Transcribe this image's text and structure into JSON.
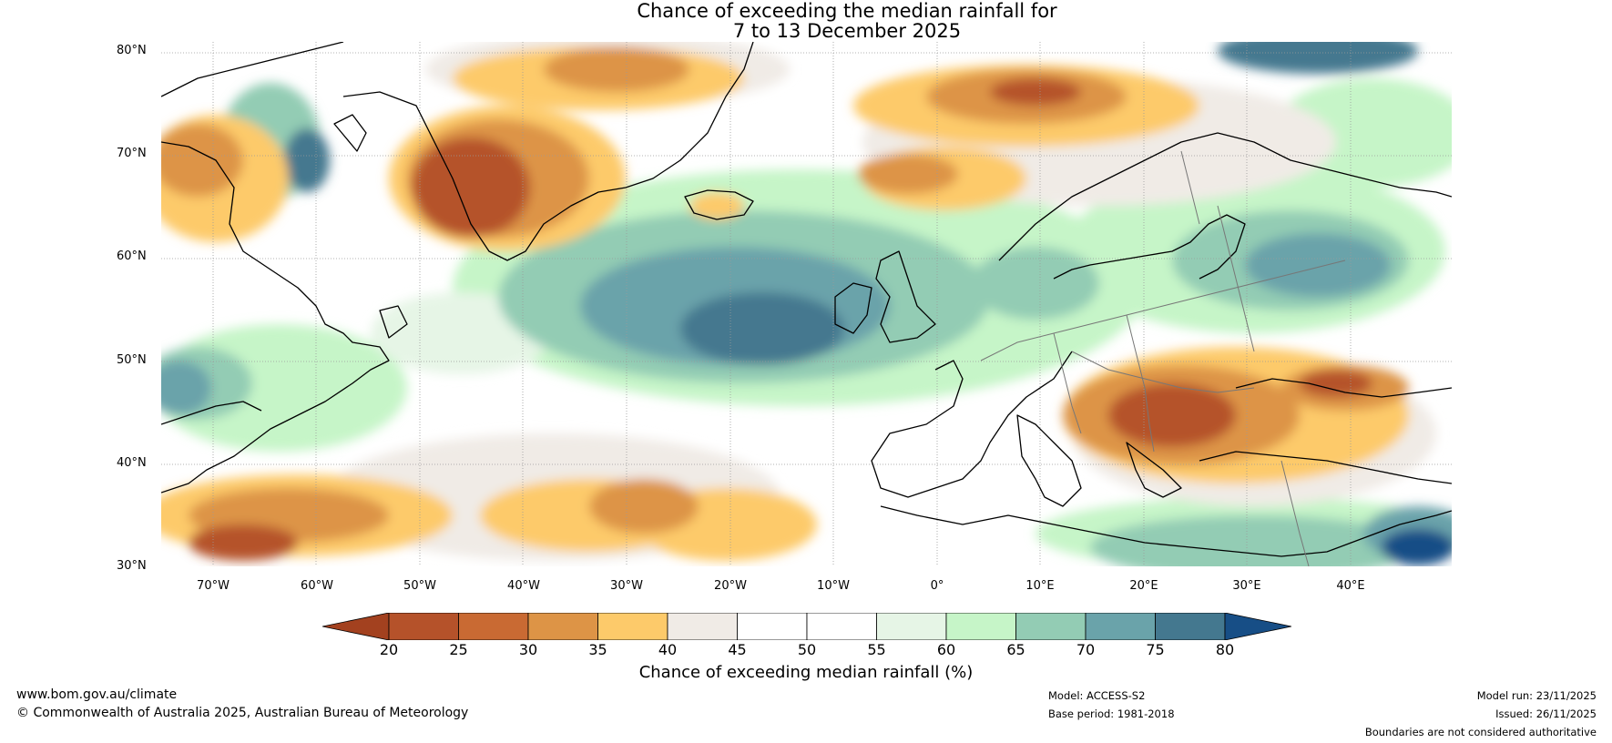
{
  "title": {
    "line1": "Chance of exceeding the median rainfall for",
    "line2": "7 to 13 December 2025"
  },
  "map": {
    "name": "North Atlantic and Europe rainfall outlook map",
    "lat_labels": [
      "80°N",
      "70°N",
      "60°N",
      "50°N",
      "40°N",
      "30°N"
    ],
    "lon_labels": [
      "70°W",
      "60°W",
      "50°W",
      "40°W",
      "30°W",
      "20°W",
      "10°W",
      "0°",
      "10°E",
      "20°E",
      "30°E",
      "40°E"
    ]
  },
  "colorbar": {
    "ticks": [
      "20",
      "25",
      "30",
      "35",
      "40",
      "45",
      "50",
      "55",
      "60",
      "65",
      "70",
      "75",
      "80"
    ],
    "colors": [
      "#a3411f",
      "#b5522a",
      "#c96a33",
      "#dd9446",
      "#fdca6a",
      "#f0ebe6",
      "#ffffff",
      "#ffffff",
      "#e6f5e6",
      "#c6f5c8",
      "#93ccb4",
      "#6aa3aa",
      "#44788f",
      "#174e86"
    ],
    "label": "Chance of exceeding median rainfall (%)"
  },
  "footer": {
    "website": "www.bom.gov.au/climate",
    "copyright": "© Commonwealth of Australia 2025, Australian Bureau of Meteorology",
    "model": "Model: ACCESS-S2",
    "base_period": "Base period: 1981-2018",
    "model_run": "Model run: 23/11/2025",
    "issued": "Issued: 26/11/2025",
    "disclaimer": "Boundaries are not considered authoritative"
  }
}
